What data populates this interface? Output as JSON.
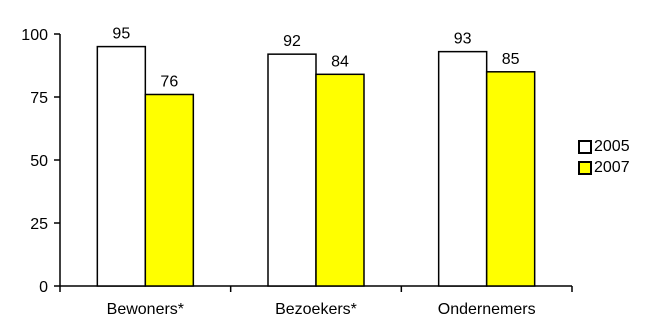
{
  "chart_data": {
    "type": "bar",
    "categories": [
      "Bewoners*",
      "Bezoekers*",
      "Ondernemers"
    ],
    "series": [
      {
        "name": "2005",
        "values": [
          95,
          92,
          93
        ],
        "color": "#ffffff"
      },
      {
        "name": "2007",
        "values": [
          76,
          84,
          85
        ],
        "color": "#ffff00"
      }
    ],
    "ylim": [
      0,
      100
    ],
    "yticks": [
      0,
      25,
      50,
      75,
      100
    ],
    "legend_position": "right",
    "grid": false
  }
}
